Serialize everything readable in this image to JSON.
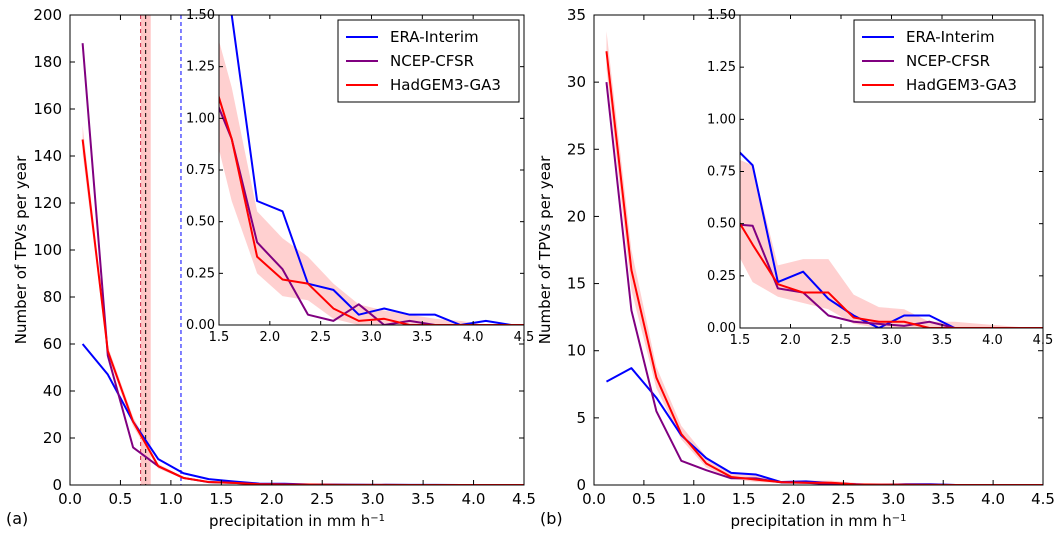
{
  "chart_data": [
    {
      "type": "line",
      "panel_label": "(a)",
      "xlabel": "precipitation in mm h$^{-1}$",
      "ylabel": "Number of TPVs per year",
      "xlim": [
        0.0,
        4.5
      ],
      "ylim": [
        0,
        200
      ],
      "xticks": [
        "0.0",
        "0.5",
        "1.0",
        "1.5",
        "2.0",
        "2.5",
        "3.0",
        "3.5",
        "4.0",
        "4.5"
      ],
      "yticks": [
        "0",
        "20",
        "40",
        "60",
        "80",
        "100",
        "120",
        "140",
        "160",
        "180",
        "200"
      ],
      "vlines": [
        {
          "x": 0.7,
          "color": "#cc2244",
          "style": "dashed"
        },
        {
          "x": 0.75,
          "color": "#000000",
          "style": "dashed"
        },
        {
          "x": 1.1,
          "color": "#0000ff",
          "style": "dashed"
        }
      ],
      "vband": [
        0.7,
        0.8
      ],
      "series": [
        {
          "name": "ERA-Interim",
          "color": "#0000ff",
          "x": [
            0.125,
            0.375,
            0.625,
            0.875,
            1.125,
            1.375,
            1.625,
            1.875,
            2.125,
            2.375,
            2.625,
            2.875,
            3.125,
            3.375,
            3.625,
            3.875,
            4.125,
            4.375,
            4.5
          ],
          "y": [
            60,
            47,
            27,
            11,
            5,
            2.5,
            1.5,
            0.6,
            0.55,
            0.2,
            0.17,
            0.05,
            0.08,
            0.05,
            0.05,
            0,
            0.02,
            0,
            0
          ]
        },
        {
          "name": "NCEP-CFSR",
          "color": "#800080",
          "x": [
            0.125,
            0.375,
            0.625,
            0.875,
            1.125,
            1.375,
            1.625,
            1.875,
            2.125,
            2.375,
            2.625,
            2.875,
            3.125,
            3.375,
            3.625,
            3.875,
            4.125,
            4.375,
            4.5
          ],
          "y": [
            188,
            55,
            16,
            8,
            3,
            1.2,
            0.9,
            0.4,
            0.27,
            0.05,
            0.02,
            0.1,
            0,
            0.02,
            0,
            0,
            0,
            0,
            0
          ]
        },
        {
          "name": "HadGEM3-GA3",
          "color": "#ff0000",
          "x": [
            0.125,
            0.375,
            0.625,
            0.875,
            1.125,
            1.375,
            1.625,
            1.875,
            2.125,
            2.375,
            2.625,
            2.875,
            3.125,
            3.375,
            3.625,
            3.875,
            4.125,
            4.375,
            4.5
          ],
          "y": [
            147,
            57,
            27,
            8,
            3,
            1.3,
            0.9,
            0.33,
            0.22,
            0.2,
            0.08,
            0.02,
            0.03,
            0,
            0,
            0,
            0,
            0,
            0
          ],
          "band_low": [
            141,
            55,
            25,
            7,
            2.6,
            1.1,
            0.6,
            0.25,
            0.14,
            0.12,
            0.03,
            0,
            0,
            0,
            0,
            0,
            0,
            0,
            0
          ],
          "band_high": [
            153,
            59,
            29,
            9,
            3.4,
            1.6,
            1.15,
            0.55,
            0.42,
            0.33,
            0.2,
            0.1,
            0.07,
            0.05,
            0.03,
            0.02,
            0,
            0,
            0
          ]
        }
      ],
      "inset": {
        "xlim": [
          1.5,
          4.5
        ],
        "ylim": [
          0,
          1.5
        ],
        "xticks": [
          "1.5",
          "2.0",
          "2.5",
          "3.0",
          "3.5",
          "4.0",
          "4.5"
        ],
        "yticks": [
          "0.00",
          "0.25",
          "0.50",
          "0.75",
          "1.00",
          "1.25",
          "1.50"
        ]
      },
      "legend": "top-right"
    },
    {
      "type": "line",
      "panel_label": "(b)",
      "xlabel": "precipitation in mm h$^{-1}$",
      "ylabel": "Number of TPVs per year",
      "xlim": [
        0.0,
        4.5
      ],
      "ylim": [
        0,
        35
      ],
      "xticks": [
        "0.0",
        "0.5",
        "1.0",
        "1.5",
        "2.0",
        "2.5",
        "3.0",
        "3.5",
        "4.0",
        "4.5"
      ],
      "yticks": [
        "0",
        "5",
        "10",
        "15",
        "20",
        "25",
        "30",
        "35"
      ],
      "series": [
        {
          "name": "ERA-Interim",
          "color": "#0000ff",
          "x": [
            0.125,
            0.375,
            0.625,
            0.875,
            1.125,
            1.375,
            1.625,
            1.875,
            2.125,
            2.375,
            2.625,
            2.875,
            3.125,
            3.375,
            3.625,
            3.875,
            4.125,
            4.375,
            4.5
          ],
          "y": [
            7.7,
            8.7,
            6.5,
            3.7,
            2,
            0.9,
            0.78,
            0.22,
            0.27,
            0.14,
            0.06,
            0,
            0.06,
            0.06,
            0,
            0,
            0,
            0,
            0
          ]
        },
        {
          "name": "NCEP-CFSR",
          "color": "#800080",
          "x": [
            0.125,
            0.375,
            0.625,
            0.875,
            1.125,
            1.375,
            1.625,
            1.875,
            2.125,
            2.375,
            2.625,
            2.875,
            3.125,
            3.375,
            3.625,
            3.875,
            4.125,
            4.375,
            4.5
          ],
          "y": [
            30,
            13,
            5.5,
            1.8,
            1.1,
            0.5,
            0.49,
            0.19,
            0.17,
            0.06,
            0.03,
            0.02,
            0.01,
            0.03,
            0,
            0,
            0,
            0,
            0
          ]
        },
        {
          "name": "HadGEM3-GA3",
          "color": "#ff0000",
          "x": [
            0.125,
            0.375,
            0.625,
            0.875,
            1.125,
            1.375,
            1.625,
            1.875,
            2.125,
            2.375,
            2.625,
            2.875,
            3.125,
            3.375,
            3.625,
            3.875,
            4.125,
            4.375,
            4.5
          ],
          "y": [
            32.3,
            16,
            8,
            3.8,
            1.6,
            0.6,
            0.4,
            0.21,
            0.17,
            0.17,
            0.05,
            0.03,
            0.03,
            0,
            0,
            0,
            0,
            0,
            0
          ],
          "band_low": [
            31,
            14.5,
            7.2,
            3.4,
            1.3,
            0.45,
            0.22,
            0.15,
            0.12,
            0.09,
            0.02,
            0,
            0,
            0,
            0,
            0,
            0,
            0,
            0
          ],
          "band_high": [
            33.8,
            17.5,
            8.8,
            4.4,
            2.1,
            0.83,
            0.78,
            0.3,
            0.33,
            0.33,
            0.16,
            0.1,
            0.09,
            0.03,
            0.03,
            0.02,
            0.01,
            0,
            0
          ]
        }
      ],
      "inset": {
        "xlim": [
          1.5,
          4.5
        ],
        "ylim": [
          0,
          1.5
        ],
        "xticks": [
          "1.5",
          "2.0",
          "2.5",
          "3.0",
          "3.5",
          "4.0",
          "4.5"
        ],
        "yticks": [
          "0.00",
          "0.25",
          "0.50",
          "0.75",
          "1.00",
          "1.25",
          "1.50"
        ]
      },
      "legend": "top-right"
    }
  ]
}
